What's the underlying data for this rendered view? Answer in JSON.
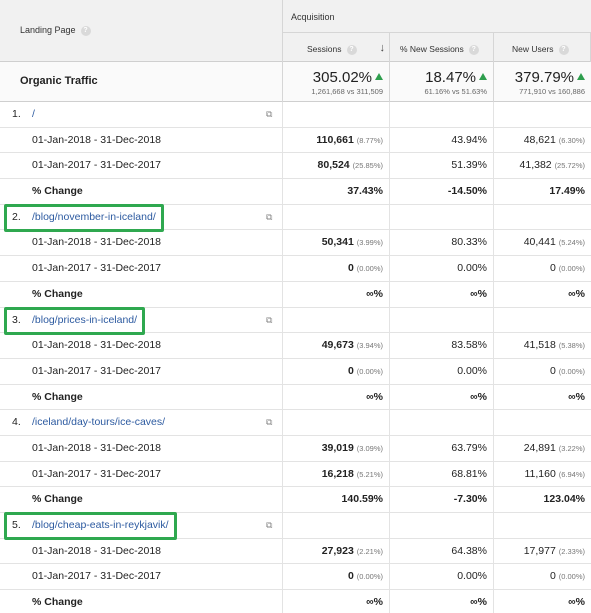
{
  "header": {
    "landing_page": "Landing Page",
    "acquisition": "Acquisition",
    "sessions": "Sessions",
    "new_sessions": "% New Sessions",
    "new_users": "New Users",
    "help_glyph": "?",
    "sort_glyph": "↓"
  },
  "summary": {
    "title": "Organic Traffic",
    "sessions": {
      "big": "305.02%",
      "small": "1,261,668 vs 311,509"
    },
    "new_sessions": {
      "big": "18.47%",
      "small": "61.16% vs 51.63%"
    },
    "new_users": {
      "big": "379.79%",
      "small": "771,910 vs 160,886"
    }
  },
  "rows": [
    {
      "index": "1.",
      "page": "/",
      "highlight": false,
      "r1": {
        "label": "01-Jan-2018 - 31-Dec-2018",
        "sessions": "110,661",
        "sessions_pct": "(8.77%)",
        "new_sessions": "43.94%",
        "new_users": "48,621",
        "new_users_pct": "(6.30%)"
      },
      "r2": {
        "label": "01-Jan-2017 - 31-Dec-2017",
        "sessions": "80,524",
        "sessions_pct": "(25.85%)",
        "new_sessions": "51.39%",
        "new_users": "41,382",
        "new_users_pct": "(25.72%)"
      },
      "change": {
        "label": "% Change",
        "sessions": "37.43%",
        "new_sessions": "-14.50%",
        "new_users": "17.49%"
      }
    },
    {
      "index": "2.",
      "page": "/blog/november-in-iceland/",
      "highlight": true,
      "r1": {
        "label": "01-Jan-2018 - 31-Dec-2018",
        "sessions": "50,341",
        "sessions_pct": "(3.99%)",
        "new_sessions": "80.33%",
        "new_users": "40,441",
        "new_users_pct": "(5.24%)"
      },
      "r2": {
        "label": "01-Jan-2017 - 31-Dec-2017",
        "sessions": "0",
        "sessions_pct": "(0.00%)",
        "new_sessions": "0.00%",
        "new_users": "0",
        "new_users_pct": "(0.00%)"
      },
      "change": {
        "label": "% Change",
        "sessions": "∞%",
        "new_sessions": "∞%",
        "new_users": "∞%"
      }
    },
    {
      "index": "3.",
      "page": "/blog/prices-in-iceland/",
      "highlight": true,
      "r1": {
        "label": "01-Jan-2018 - 31-Dec-2018",
        "sessions": "49,673",
        "sessions_pct": "(3.94%)",
        "new_sessions": "83.58%",
        "new_users": "41,518",
        "new_users_pct": "(5.38%)"
      },
      "r2": {
        "label": "01-Jan-2017 - 31-Dec-2017",
        "sessions": "0",
        "sessions_pct": "(0.00%)",
        "new_sessions": "0.00%",
        "new_users": "0",
        "new_users_pct": "(0.00%)"
      },
      "change": {
        "label": "% Change",
        "sessions": "∞%",
        "new_sessions": "∞%",
        "new_users": "∞%"
      }
    },
    {
      "index": "4.",
      "page": "/iceland/day-tours/ice-caves/",
      "highlight": false,
      "r1": {
        "label": "01-Jan-2018 - 31-Dec-2018",
        "sessions": "39,019",
        "sessions_pct": "(3.09%)",
        "new_sessions": "63.79%",
        "new_users": "24,891",
        "new_users_pct": "(3.22%)"
      },
      "r2": {
        "label": "01-Jan-2017 - 31-Dec-2017",
        "sessions": "16,218",
        "sessions_pct": "(5.21%)",
        "new_sessions": "68.81%",
        "new_users": "11,160",
        "new_users_pct": "(6.94%)"
      },
      "change": {
        "label": "% Change",
        "sessions": "140.59%",
        "new_sessions": "-7.30%",
        "new_users": "123.04%"
      }
    },
    {
      "index": "5.",
      "page": "/blog/cheap-eats-in-reykjavik/",
      "highlight": true,
      "r1": {
        "label": "01-Jan-2018 - 31-Dec-2018",
        "sessions": "27,923",
        "sessions_pct": "(2.21%)",
        "new_sessions": "64.38%",
        "new_users": "17,977",
        "new_users_pct": "(2.33%)"
      },
      "r2": {
        "label": "01-Jan-2017 - 31-Dec-2017",
        "sessions": "0",
        "sessions_pct": "(0.00%)",
        "new_sessions": "0.00%",
        "new_users": "0",
        "new_users_pct": "(0.00%)"
      },
      "change": {
        "label": "% Change",
        "sessions": "∞%",
        "new_sessions": "∞%",
        "new_users": "∞%"
      }
    }
  ],
  "colors": {
    "link": "#2c5aa0",
    "highlight": "#2fa84f",
    "up_arrow": "#2e9e4d"
  },
  "icons": {
    "open_page": "external-link-icon",
    "help": "help-icon",
    "sort": "sort-desc-icon",
    "trend": "arrow-up-icon"
  }
}
